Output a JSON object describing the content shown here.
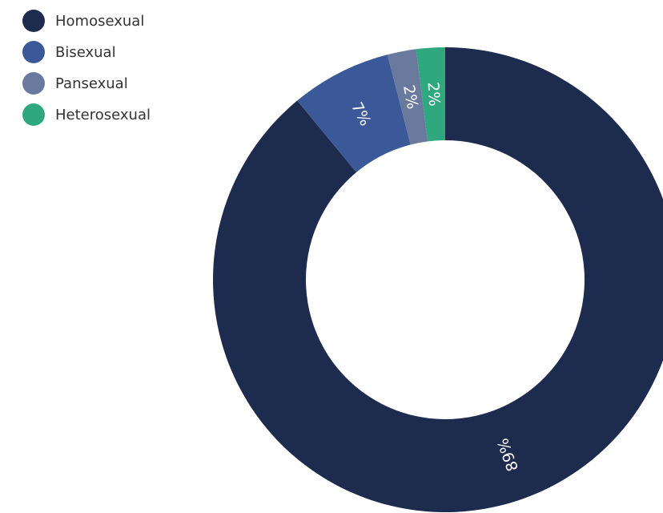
{
  "chart_data": {
    "type": "pie",
    "donut": true,
    "title": "",
    "categories": [
      "Homosexual",
      "Bisexual",
      "Pansexual",
      "Heterosexual"
    ],
    "values": [
      89,
      7,
      2,
      2
    ],
    "labels": [
      "89%",
      "7%",
      "2%",
      "2%"
    ],
    "unit": "%",
    "colors": [
      "#1c2b4e",
      "#3b5998",
      "#6a7a9e",
      "#2fa87f"
    ],
    "legend": {
      "position": "top-left",
      "items": [
        {
          "label": "Homosexual",
          "color": "#1c2b4e"
        },
        {
          "label": "Bisexual",
          "color": "#3b5998"
        },
        {
          "label": "Pansexual",
          "color": "#6a7a9e"
        },
        {
          "label": "Heterosexual",
          "color": "#2fa87f"
        }
      ]
    }
  }
}
